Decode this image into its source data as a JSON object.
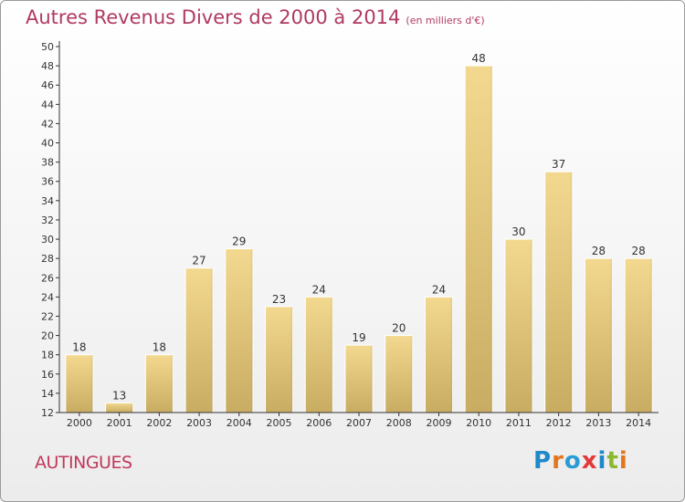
{
  "header": {
    "title": "Autres Revenus Divers de 2000 à 2014",
    "unit": "(en milliers d'€)"
  },
  "footer": {
    "place": "AUTINGUES",
    "logo_letters": [
      "P",
      "r",
      "o",
      "x",
      "i",
      "t",
      "i"
    ]
  },
  "colors": {
    "title": "#b03a60",
    "bar_top": "#f3d98f",
    "bar_bottom": "#c8ac62",
    "axis": "#333333"
  },
  "chart_data": {
    "type": "bar",
    "categories": [
      "2000",
      "2001",
      "2002",
      "2003",
      "2004",
      "2005",
      "2006",
      "2007",
      "2008",
      "2009",
      "2010",
      "2011",
      "2012",
      "2013",
      "2014"
    ],
    "values": [
      18,
      13,
      18,
      27,
      29,
      23,
      24,
      19,
      20,
      24,
      48,
      30,
      37,
      28,
      28
    ],
    "ylim": [
      12,
      50
    ],
    "yticks": [
      12,
      14,
      16,
      18,
      20,
      22,
      24,
      26,
      28,
      30,
      32,
      34,
      36,
      38,
      40,
      42,
      44,
      46,
      48,
      50
    ],
    "grid": false,
    "legend": "none"
  }
}
